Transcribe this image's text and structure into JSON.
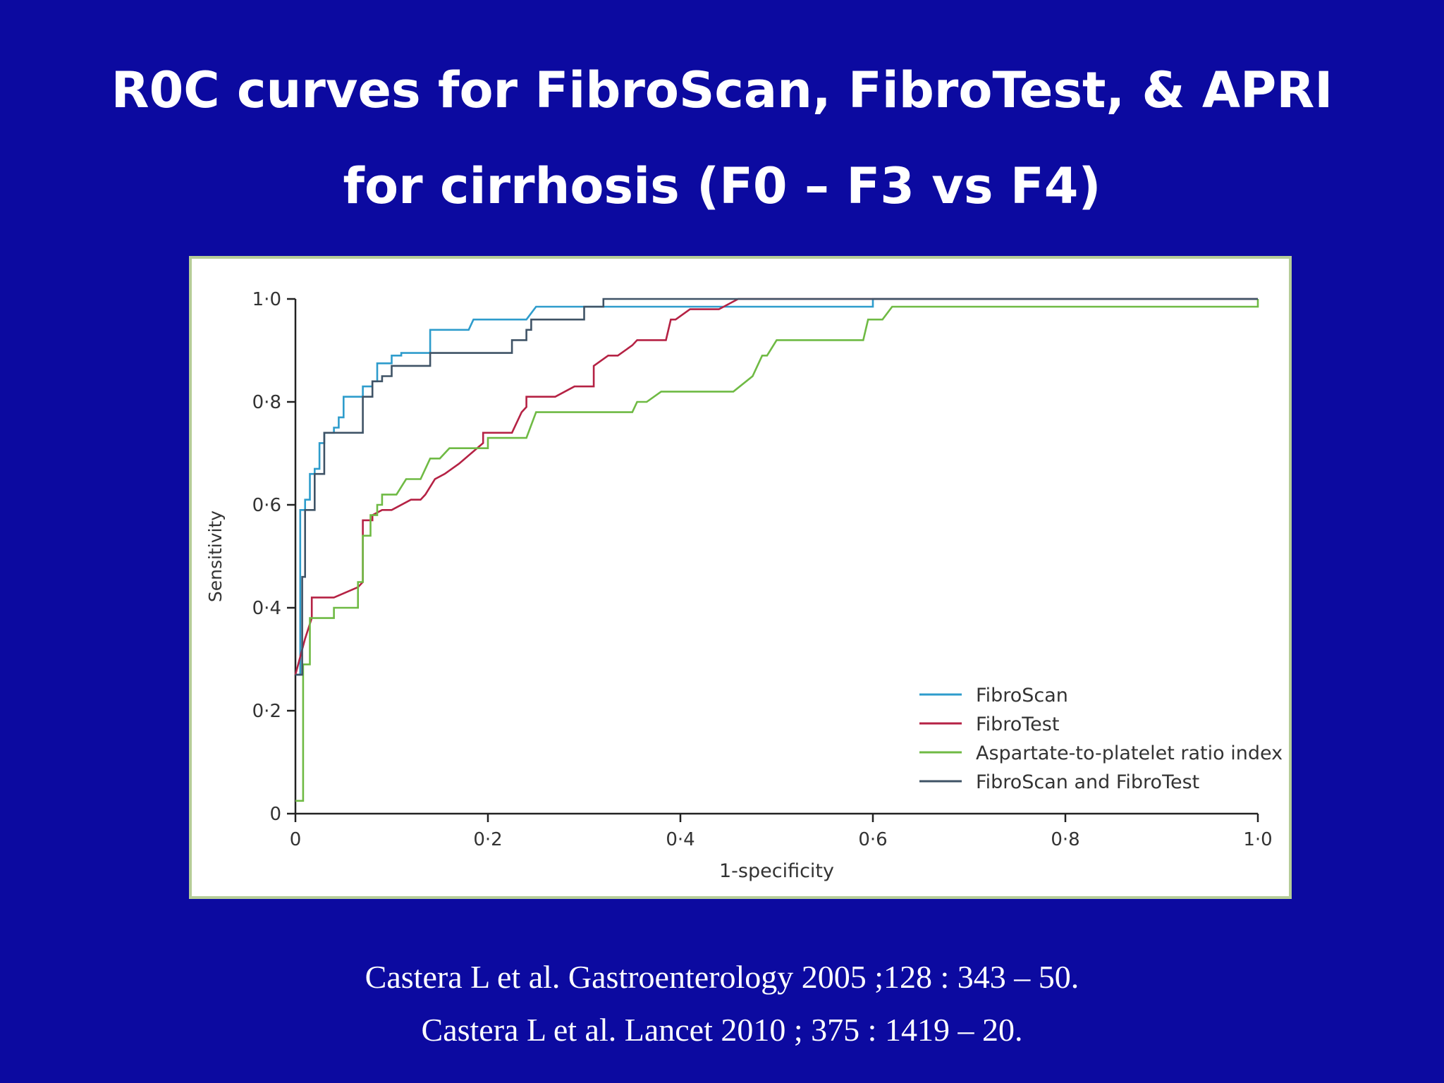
{
  "slide": {
    "title_line1": "R0C curves for FibroScan, FibroTest, & APRI",
    "title_line2": "for cirrhosis (F0 – F3 vs F4)",
    "background_color": "#0c0aa0",
    "citations": [
      "Castera L et al. Gastroenterology 2005 ;128 : 343 – 50.",
      "Castera L et al. Lancet 2010 ; 375 : 1419 – 20."
    ]
  },
  "chart_data": {
    "type": "line",
    "line_shape": "step",
    "title": "",
    "xlabel": "1-specificity",
    "ylabel": "Sensitivity",
    "xlim": [
      0,
      1.0
    ],
    "ylim": [
      0,
      1.0
    ],
    "x_ticks": [
      {
        "value": 0,
        "label": "0"
      },
      {
        "value": 0.2,
        "label": "0·2"
      },
      {
        "value": 0.4,
        "label": "0·4"
      },
      {
        "value": 0.6,
        "label": "0·6"
      },
      {
        "value": 0.8,
        "label": "0·8"
      },
      {
        "value": 1.0,
        "label": "1·0"
      }
    ],
    "y_ticks": [
      {
        "value": 0,
        "label": "0"
      },
      {
        "value": 0.2,
        "label": "0·2"
      },
      {
        "value": 0.4,
        "label": "0·4"
      },
      {
        "value": 0.6,
        "label": "0·6"
      },
      {
        "value": 0.8,
        "label": "0·8"
      },
      {
        "value": 1.0,
        "label": "1·0"
      }
    ],
    "grid": false,
    "legend_position": "bottom-right",
    "series": [
      {
        "name": "FibroScan",
        "color": "#2e9ccc",
        "points": [
          [
            0,
            0.27
          ],
          [
            0.005,
            0.27
          ],
          [
            0.005,
            0.59
          ],
          [
            0.01,
            0.59
          ],
          [
            0.01,
            0.61
          ],
          [
            0.015,
            0.61
          ],
          [
            0.015,
            0.66
          ],
          [
            0.02,
            0.66
          ],
          [
            0.02,
            0.67
          ],
          [
            0.025,
            0.67
          ],
          [
            0.025,
            0.72
          ],
          [
            0.03,
            0.72
          ],
          [
            0.03,
            0.74
          ],
          [
            0.04,
            0.74
          ],
          [
            0.04,
            0.75
          ],
          [
            0.045,
            0.75
          ],
          [
            0.045,
            0.77
          ],
          [
            0.05,
            0.77
          ],
          [
            0.05,
            0.81
          ],
          [
            0.07,
            0.81
          ],
          [
            0.07,
            0.83
          ],
          [
            0.08,
            0.83
          ],
          [
            0.08,
            0.84
          ],
          [
            0.085,
            0.84
          ],
          [
            0.085,
            0.875
          ],
          [
            0.1,
            0.875
          ],
          [
            0.1,
            0.89
          ],
          [
            0.11,
            0.89
          ],
          [
            0.11,
            0.895
          ],
          [
            0.14,
            0.895
          ],
          [
            0.14,
            0.94
          ],
          [
            0.18,
            0.94
          ],
          [
            0.185,
            0.96
          ],
          [
            0.24,
            0.96
          ],
          [
            0.25,
            0.985
          ],
          [
            0.6,
            0.985
          ],
          [
            0.6,
            1.0
          ],
          [
            1.0,
            1.0
          ]
        ]
      },
      {
        "name": "FibroTest",
        "color": "#b52244",
        "points": [
          [
            0,
            0.27
          ],
          [
            0.01,
            0.34
          ],
          [
            0.017,
            0.38
          ],
          [
            0.017,
            0.42
          ],
          [
            0.04,
            0.42
          ],
          [
            0.065,
            0.44
          ],
          [
            0.07,
            0.45
          ],
          [
            0.07,
            0.57
          ],
          [
            0.08,
            0.57
          ],
          [
            0.08,
            0.58
          ],
          [
            0.09,
            0.59
          ],
          [
            0.1,
            0.59
          ],
          [
            0.12,
            0.61
          ],
          [
            0.13,
            0.61
          ],
          [
            0.135,
            0.62
          ],
          [
            0.145,
            0.65
          ],
          [
            0.155,
            0.66
          ],
          [
            0.17,
            0.68
          ],
          [
            0.195,
            0.72
          ],
          [
            0.195,
            0.74
          ],
          [
            0.225,
            0.74
          ],
          [
            0.235,
            0.78
          ],
          [
            0.24,
            0.79
          ],
          [
            0.24,
            0.81
          ],
          [
            0.27,
            0.81
          ],
          [
            0.29,
            0.83
          ],
          [
            0.31,
            0.83
          ],
          [
            0.31,
            0.87
          ],
          [
            0.325,
            0.89
          ],
          [
            0.335,
            0.89
          ],
          [
            0.35,
            0.91
          ],
          [
            0.355,
            0.92
          ],
          [
            0.385,
            0.92
          ],
          [
            0.39,
            0.96
          ],
          [
            0.395,
            0.96
          ],
          [
            0.41,
            0.98
          ],
          [
            0.44,
            0.98
          ],
          [
            0.46,
            1.0
          ],
          [
            1.0,
            1.0
          ]
        ]
      },
      {
        "name": "Aspartate-to-platelet ratio index",
        "color": "#6fba44",
        "points": [
          [
            0,
            0.025
          ],
          [
            0.008,
            0.025
          ],
          [
            0.008,
            0.29
          ],
          [
            0.015,
            0.29
          ],
          [
            0.015,
            0.38
          ],
          [
            0.04,
            0.38
          ],
          [
            0.04,
            0.4
          ],
          [
            0.065,
            0.4
          ],
          [
            0.065,
            0.45
          ],
          [
            0.07,
            0.45
          ],
          [
            0.07,
            0.54
          ],
          [
            0.078,
            0.54
          ],
          [
            0.078,
            0.58
          ],
          [
            0.085,
            0.58
          ],
          [
            0.085,
            0.6
          ],
          [
            0.09,
            0.6
          ],
          [
            0.09,
            0.62
          ],
          [
            0.105,
            0.62
          ],
          [
            0.115,
            0.65
          ],
          [
            0.13,
            0.65
          ],
          [
            0.14,
            0.69
          ],
          [
            0.15,
            0.69
          ],
          [
            0.16,
            0.71
          ],
          [
            0.2,
            0.71
          ],
          [
            0.2,
            0.73
          ],
          [
            0.24,
            0.73
          ],
          [
            0.25,
            0.78
          ],
          [
            0.35,
            0.78
          ],
          [
            0.355,
            0.8
          ],
          [
            0.365,
            0.8
          ],
          [
            0.38,
            0.82
          ],
          [
            0.455,
            0.82
          ],
          [
            0.475,
            0.85
          ],
          [
            0.485,
            0.89
          ],
          [
            0.49,
            0.89
          ],
          [
            0.5,
            0.92
          ],
          [
            0.59,
            0.92
          ],
          [
            0.595,
            0.96
          ],
          [
            0.61,
            0.96
          ],
          [
            0.62,
            0.985
          ],
          [
            1.0,
            0.985
          ],
          [
            1.0,
            1.0
          ]
        ]
      },
      {
        "name": "FibroScan and FibroTest",
        "color": "#3f5366",
        "points": [
          [
            0,
            0.27
          ],
          [
            0.007,
            0.27
          ],
          [
            0.007,
            0.46
          ],
          [
            0.01,
            0.46
          ],
          [
            0.01,
            0.59
          ],
          [
            0.02,
            0.59
          ],
          [
            0.02,
            0.66
          ],
          [
            0.03,
            0.66
          ],
          [
            0.03,
            0.74
          ],
          [
            0.07,
            0.74
          ],
          [
            0.07,
            0.81
          ],
          [
            0.08,
            0.81
          ],
          [
            0.08,
            0.84
          ],
          [
            0.09,
            0.84
          ],
          [
            0.09,
            0.85
          ],
          [
            0.1,
            0.85
          ],
          [
            0.1,
            0.87
          ],
          [
            0.14,
            0.87
          ],
          [
            0.14,
            0.895
          ],
          [
            0.225,
            0.895
          ],
          [
            0.225,
            0.92
          ],
          [
            0.24,
            0.92
          ],
          [
            0.24,
            0.94
          ],
          [
            0.245,
            0.94
          ],
          [
            0.245,
            0.96
          ],
          [
            0.3,
            0.96
          ],
          [
            0.3,
            0.985
          ],
          [
            0.32,
            0.985
          ],
          [
            0.32,
            1.0
          ],
          [
            1.0,
            1.0
          ]
        ]
      }
    ]
  }
}
